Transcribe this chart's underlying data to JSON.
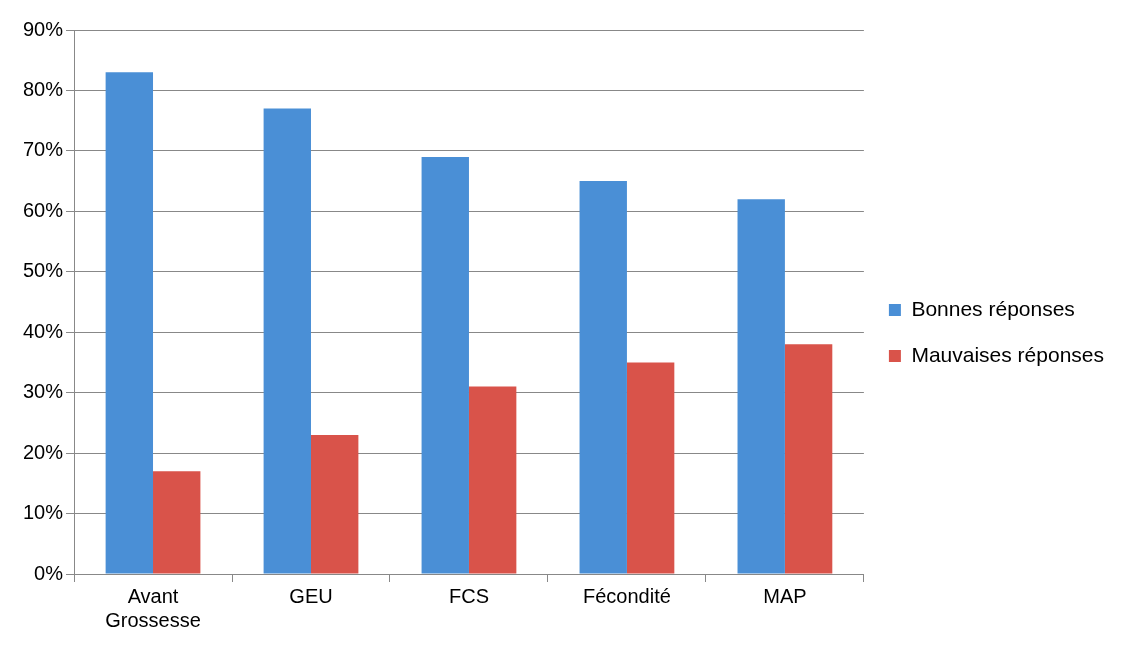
{
  "chart_data": {
    "type": "bar",
    "categories": [
      "Avant Grossesse",
      "GEU",
      "FCS",
      "Fécondité",
      "MAP"
    ],
    "series": [
      {
        "name": "Bonnes réponses",
        "color": "#4a8fd6",
        "values": [
          83,
          77,
          69,
          65,
          62
        ]
      },
      {
        "name": "Mauvaises réponses",
        "color": "#d9534a",
        "values": [
          17,
          23,
          31,
          35,
          38
        ]
      }
    ],
    "ylim": [
      0,
      90
    ],
    "yticks": [
      {
        "value": 0,
        "label": "0%"
      },
      {
        "value": 10,
        "label": "10%"
      },
      {
        "value": 20,
        "label": "20%"
      },
      {
        "value": 30,
        "label": "30%"
      },
      {
        "value": 40,
        "label": "40%"
      },
      {
        "value": 50,
        "label": "50%"
      },
      {
        "value": 60,
        "label": "60%"
      },
      {
        "value": 70,
        "label": "70%"
      },
      {
        "value": 80,
        "label": "80%"
      },
      {
        "value": 90,
        "label": "90%"
      }
    ],
    "grid": "y",
    "legend": "right"
  }
}
